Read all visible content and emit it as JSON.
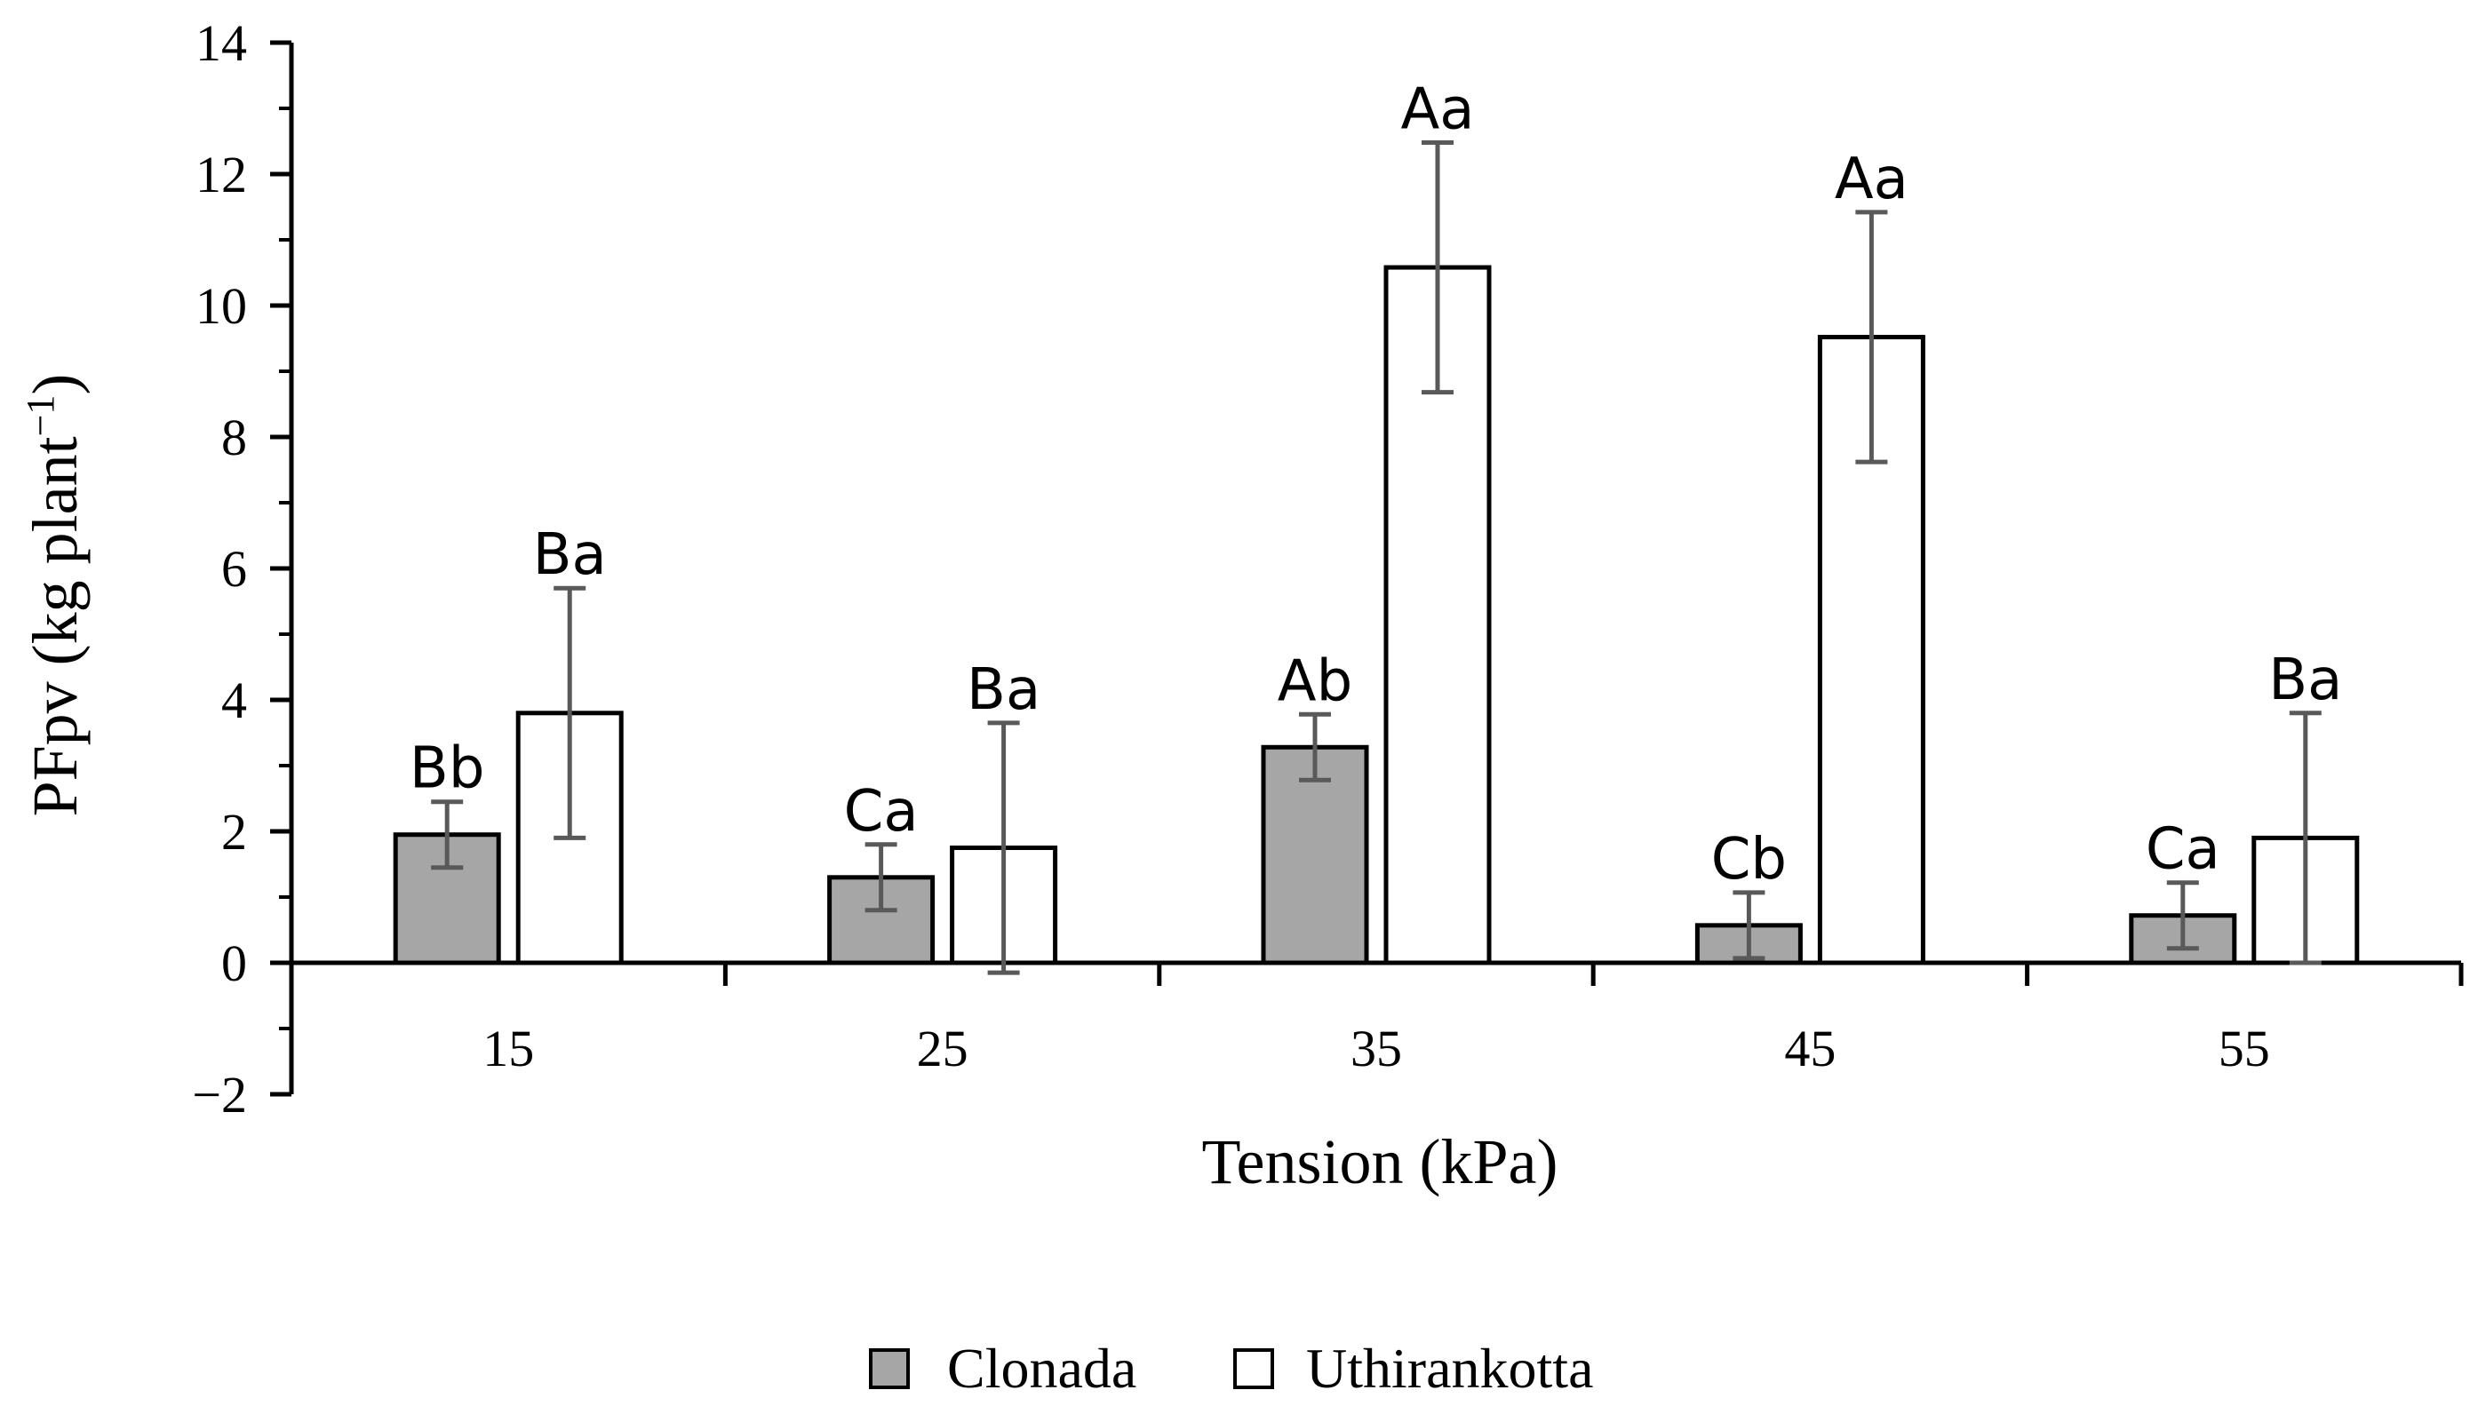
{
  "chart_data": {
    "type": "bar",
    "title": "",
    "xlabel": "Tension (kPa)",
    "ylabel": "PFpv (kg plant",
    "ylabel_superscript": "−1",
    "ylabel_close": ")",
    "ylim": [
      -2,
      14
    ],
    "yticks": [
      -2,
      0,
      2,
      4,
      6,
      8,
      10,
      12,
      14
    ],
    "ytick_labels": [
      "−2",
      "0",
      "2",
      "4",
      "6",
      "8",
      "10",
      "12",
      "14"
    ],
    "categories": [
      "15",
      "25",
      "35",
      "45",
      "55"
    ],
    "series": [
      {
        "name": "Clonada",
        "color": "#a6a6a6",
        "values": [
          1.95,
          1.3,
          3.28,
          0.57,
          0.72
        ],
        "errors": [
          0.5,
          0.5,
          0.5,
          0.5,
          0.5
        ],
        "labels": [
          "Bb",
          "Ca",
          "Ab",
          "Cb",
          "Ca"
        ]
      },
      {
        "name": "Uthirankotta",
        "color": "#ffffff",
        "values": [
          3.8,
          1.75,
          10.58,
          9.52,
          1.9
        ],
        "errors": [
          1.9,
          1.9,
          1.9,
          1.9,
          1.9
        ],
        "labels": [
          "Ba",
          "Ba",
          "Aa",
          "Aa",
          "Ba"
        ]
      }
    ],
    "bar_edge_color": "#000000",
    "error_color": "#595959",
    "legend_position": "bottom-center"
  }
}
